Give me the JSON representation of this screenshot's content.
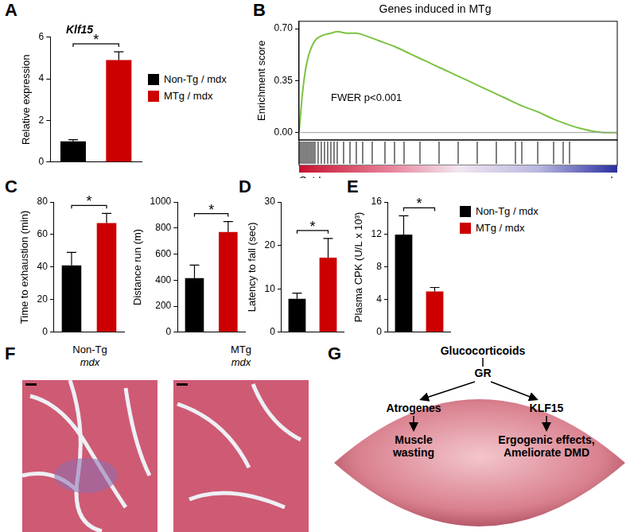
{
  "panel_letters": [
    "A",
    "B",
    "C",
    "D",
    "E",
    "F",
    "G"
  ],
  "chart_data": [
    {
      "type": "bar",
      "title": "Klf15",
      "y_label": "Relative expression",
      "categories": [
        "Non-Tg / mdx",
        "MTg / mdx"
      ],
      "values": [
        1.0,
        4.9
      ],
      "errors": [
        0.08,
        0.4
      ],
      "colors": [
        "#000000",
        "#cc0000"
      ],
      "ylim": [
        0,
        6
      ],
      "yticks": [
        0,
        2,
        4,
        6
      ],
      "significance": "*",
      "legend": "right",
      "tick_labels": "y",
      "grid": false
    },
    {
      "type": "line",
      "title": "Genes induced in MTg",
      "y_label": "Enrichment score",
      "x": [
        0,
        1,
        2,
        3,
        4,
        5,
        6,
        8,
        10,
        12,
        15,
        18,
        20,
        25,
        30,
        35,
        40,
        45,
        50,
        55,
        60,
        65,
        70,
        75,
        80,
        85,
        88,
        92,
        96,
        100
      ],
      "values": [
        0,
        0.25,
        0.42,
        0.52,
        0.58,
        0.62,
        0.64,
        0.66,
        0.67,
        0.68,
        0.67,
        0.67,
        0.66,
        0.62,
        0.58,
        0.53,
        0.48,
        0.43,
        0.38,
        0.33,
        0.28,
        0.23,
        0.18,
        0.14,
        0.09,
        0.05,
        0.03,
        0.01,
        0.0,
        0.0
      ],
      "color": "#7cc242",
      "xlim": [
        0,
        100
      ],
      "ylim": [
        -0.05,
        0.75
      ],
      "yticks": [
        {
          "value": 0,
          "label": "0.00"
        },
        {
          "value": 0.35,
          "label": "0.35"
        },
        {
          "value": 0.7,
          "label": "0.70"
        }
      ],
      "hits": [
        0,
        0.5,
        1,
        1.5,
        2,
        2.5,
        3,
        3.5,
        4,
        4.5,
        5,
        6,
        7,
        8,
        9,
        10,
        11,
        12,
        14,
        16,
        18,
        20,
        23,
        27,
        30,
        33,
        38,
        44,
        50,
        56,
        62,
        68,
        70,
        75,
        80,
        83,
        85
      ],
      "annotation": "FWER p<0.001",
      "x_end_labels": [
        "Cntrl",
        "mdx"
      ],
      "tick_labels": "y",
      "grid": false
    },
    {
      "type": "bar",
      "y_label": "Time to exhaustion (min)",
      "categories": [
        null,
        null
      ],
      "values": [
        41,
        67
      ],
      "errors": [
        8,
        6
      ],
      "colors": [
        "#000000",
        "#cc0000"
      ],
      "ylim": [
        0,
        80
      ],
      "yticks": [
        0,
        20,
        40,
        60,
        80
      ],
      "significance": "*",
      "tick_labels": "y",
      "grid": false
    },
    {
      "type": "bar",
      "y_label": "Distance run (m)",
      "categories": [
        null,
        null
      ],
      "values": [
        415,
        770
      ],
      "errors": [
        100,
        80
      ],
      "colors": [
        "#000000",
        "#cc0000"
      ],
      "ylim": [
        0,
        1000
      ],
      "yticks": [
        0,
        200,
        400,
        600,
        800,
        1000
      ],
      "significance": "*",
      "tick_labels": "y",
      "grid": false
    },
    {
      "type": "bar",
      "y_label": "Latency to fall (sec)",
      "categories": [
        null,
        null
      ],
      "values": [
        7.7,
        17.2
      ],
      "errors": [
        1.3,
        4.4
      ],
      "colors": [
        "#000000",
        "#cc0000"
      ],
      "ylim": [
        0,
        30
      ],
      "yticks": [
        0,
        10,
        20,
        30
      ],
      "significance": "*",
      "tick_labels": "y",
      "grid": false
    },
    {
      "type": "bar",
      "y_label": "Plasma CPK (U/L x 10³)",
      "categories": [
        "Non-Tg / mdx",
        "MTg / mdx"
      ],
      "values": [
        12,
        5
      ],
      "errors": [
        2.3,
        0.5
      ],
      "colors": [
        "#000000",
        "#cc0000"
      ],
      "ylim": [
        0,
        16
      ],
      "yticks": [
        0,
        4,
        8,
        12,
        16
      ],
      "significance": "*",
      "legend": "right",
      "tick_labels": "y",
      "grid": false
    }
  ],
  "histology": [
    {
      "label": [
        "Non-Tg",
        "mdx"
      ]
    },
    {
      "label": [
        "MTg",
        "mdx"
      ]
    }
  ],
  "diagram": {
    "top": "Glucocorticoids",
    "receptor": "GR",
    "left": "Atrogenes",
    "right": "KLF15",
    "left_outcome": [
      "Muscle",
      "wasting"
    ],
    "right_outcome": [
      "Ergogenic effects,",
      "Ameliorate DMD"
    ]
  }
}
